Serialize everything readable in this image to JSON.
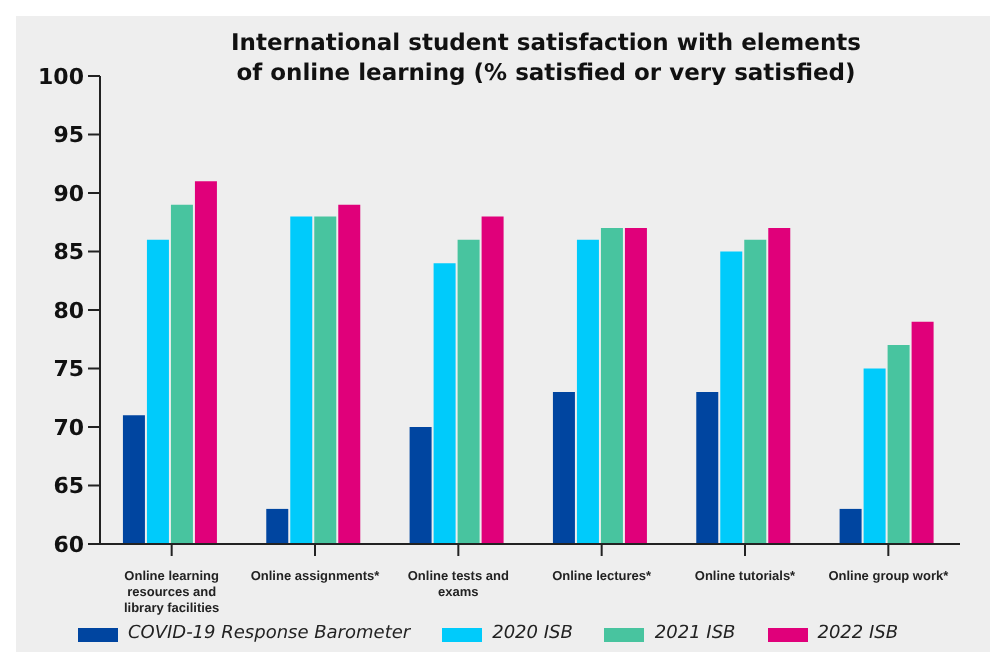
{
  "chart_data": {
    "type": "bar",
    "title": "International student satisfaction with elements of online learning (% satisfied or very satisfied)",
    "categories": [
      "Online learning resources and library facilities",
      "Online assignments*",
      "Online tests and exams",
      "Online lectures*",
      "Online tutorials*",
      "Online group work*"
    ],
    "series": [
      {
        "name": "COVID-19 Response Barometer",
        "color": "#0045a0",
        "values": [
          71,
          63,
          70,
          73,
          73,
          63
        ]
      },
      {
        "name": "2020 ISB",
        "color": "#00cbfb",
        "values": [
          86,
          88,
          84,
          86,
          85,
          75
        ]
      },
      {
        "name": "2021 ISB",
        "color": "#48c49f",
        "values": [
          89,
          88,
          86,
          87,
          86,
          77
        ]
      },
      {
        "name": "2022 ISB",
        "color": "#e0007a",
        "values": [
          91,
          89,
          88,
          87,
          87,
          79
        ]
      }
    ],
    "ylim": [
      60,
      100
    ],
    "yticks": [
      60,
      65,
      70,
      75,
      80,
      85,
      90,
      95,
      100
    ],
    "grid": false,
    "legend": "bottom"
  }
}
